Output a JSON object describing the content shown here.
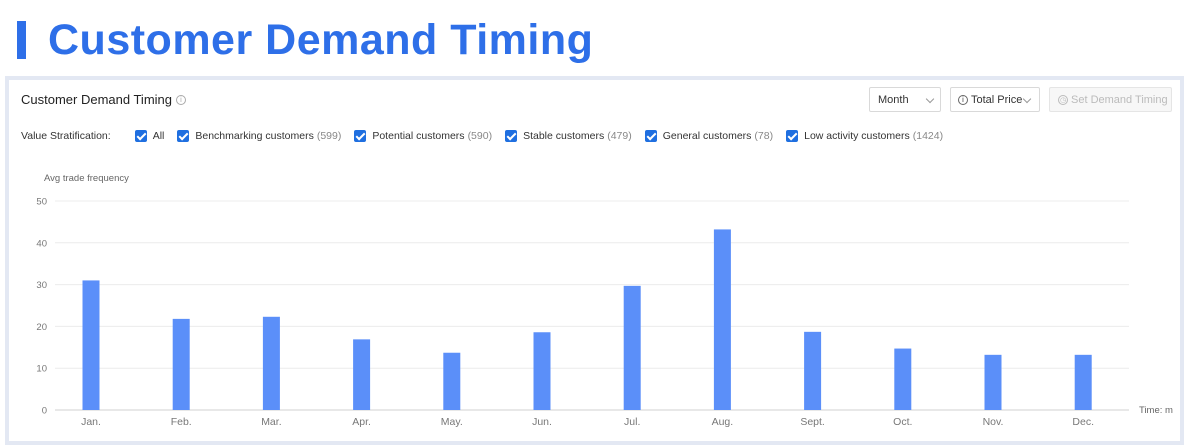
{
  "page": {
    "title": "Customer Demand Timing"
  },
  "card": {
    "title": "Customer Demand Timing",
    "info_icon": "info-circle-icon"
  },
  "controls": {
    "period": "Month",
    "metric": "Total Price",
    "set_button": "Set Demand Timing"
  },
  "filters": {
    "label": "Value Stratification:",
    "items": [
      {
        "label": "All",
        "count": "",
        "checked": true
      },
      {
        "label": "Benchmarking customers",
        "count": "(599)",
        "checked": true
      },
      {
        "label": "Potential customers",
        "count": "(590)",
        "checked": true
      },
      {
        "label": "Stable customers",
        "count": "(479)",
        "checked": true
      },
      {
        "label": "General customers",
        "count": "(78)",
        "checked": true
      },
      {
        "label": "Low activity customers",
        "count": "(1424)",
        "checked": true
      }
    ]
  },
  "chart_data": {
    "type": "bar",
    "ylabel": "Avg trade frequency",
    "xlabel": "Time: m",
    "ylim": [
      0,
      50
    ],
    "yticks": [
      0,
      10,
      20,
      30,
      40,
      50
    ],
    "grid": true,
    "bar_color": "#5b8ff9",
    "categories": [
      "Jan.",
      "Feb.",
      "Mar.",
      "Apr.",
      "May.",
      "Jun.",
      "Jul.",
      "Aug.",
      "Sept.",
      "Oct.",
      "Nov.",
      "Dec."
    ],
    "values": [
      31,
      21.8,
      22.3,
      16.9,
      13.7,
      18.6,
      29.7,
      43.2,
      18.7,
      14.7,
      13.2,
      13.2
    ]
  }
}
